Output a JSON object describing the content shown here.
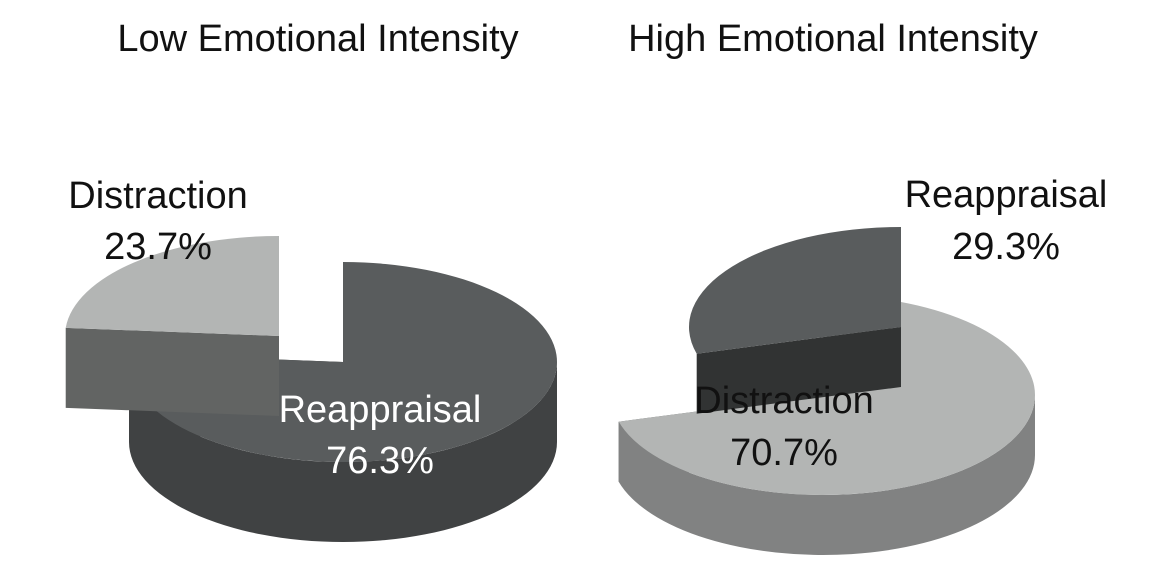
{
  "chart_data": [
    {
      "type": "pie",
      "title": "Low Emotional Intensity",
      "unit": "%",
      "slices": [
        {
          "name": "Distraction",
          "value": 23.7,
          "value_label": "23.7%",
          "color": "#b3b5b4"
        },
        {
          "name": "Reappraisal",
          "value": 76.3,
          "value_label": "76.3%",
          "color": "#595c5d"
        }
      ],
      "exploded": "Distraction",
      "style": "3d"
    },
    {
      "type": "pie",
      "title": "High Emotional Intensity",
      "unit": "%",
      "slices": [
        {
          "name": "Reappraisal",
          "value": 29.3,
          "value_label": "29.3%",
          "color": "#595c5d"
        },
        {
          "name": "Distraction",
          "value": 70.7,
          "value_label": "70.7%",
          "color": "#b3b5b4"
        }
      ],
      "exploded": "Reappraisal",
      "style": "3d"
    }
  ]
}
